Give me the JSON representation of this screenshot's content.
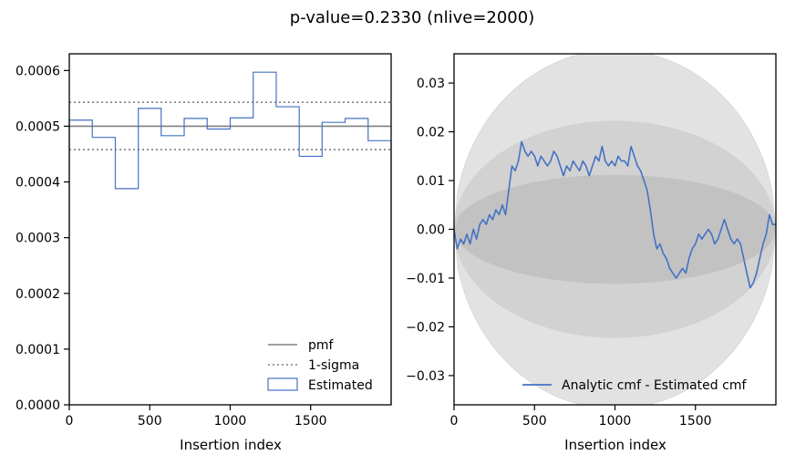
{
  "figure": {
    "title": "p-value=0.2330 (nlive=2000)"
  },
  "chart_data": [
    {
      "type": "step",
      "xlabel": "Insertion index",
      "ylabel": "",
      "xlim": [
        0,
        2000
      ],
      "ylim": [
        0,
        0.00063
      ],
      "xticks": [
        0,
        500,
        1000,
        1500
      ],
      "xtick_labels": [
        "0",
        "500",
        "1000",
        "1500"
      ],
      "yticks": [
        0,
        0.0001,
        0.0002,
        0.0003,
        0.0004,
        0.0005,
        0.0006
      ],
      "ytick_labels": [
        "0.0000",
        "0.0001",
        "0.0002",
        "0.0003",
        "0.0004",
        "0.0005",
        "0.0006"
      ],
      "legend_position": "lower-right",
      "pmf": {
        "name": "pmf",
        "value": 0.0005,
        "color": "#7f7f7f"
      },
      "sigma": {
        "name": "1-sigma",
        "upper": 0.000543,
        "lower": 0.000458,
        "color": "#7f7f7f"
      },
      "estimated": {
        "name": "Estimated",
        "color": "#4472c4",
        "bin_edges": [
          0,
          143,
          286,
          429,
          571,
          714,
          857,
          1000,
          1143,
          1286,
          1429,
          1571,
          1714,
          1857,
          2000
        ],
        "values": [
          0.000511,
          0.00048,
          0.000388,
          0.000532,
          0.000483,
          0.000514,
          0.000495,
          0.000515,
          0.000597,
          0.000535,
          0.000446,
          0.000507,
          0.000514,
          0.000474
        ]
      }
    },
    {
      "type": "line",
      "xlabel": "Insertion index",
      "ylabel": "",
      "xlim": [
        0,
        2000
      ],
      "ylim": [
        -0.036,
        0.036
      ],
      "xticks": [
        0,
        500,
        1000,
        1500
      ],
      "xtick_labels": [
        "0",
        "500",
        "1000",
        "1500"
      ],
      "yticks": [
        -0.03,
        -0.02,
        -0.01,
        0.0,
        0.01,
        0.02,
        0.03
      ],
      "ytick_labels": [
        "−0.03",
        "−0.02",
        "−0.01",
        "0.00",
        "0.01",
        "0.02",
        "0.03"
      ],
      "legend_position": "lower-right",
      "bands": [
        {
          "sigma": 3,
          "amplitude": 0.0368,
          "color": "#e2e2e2"
        },
        {
          "sigma": 2,
          "amplitude": 0.0222,
          "color": "#d2d2d2"
        },
        {
          "sigma": 1,
          "amplitude": 0.0112,
          "color": "#c2c2c2"
        }
      ],
      "series": [
        {
          "name": "Analytic cmf - Estimated cmf",
          "color": "#4472c4",
          "x": [
            0,
            20,
            40,
            60,
            80,
            100,
            120,
            140,
            160,
            180,
            200,
            220,
            240,
            260,
            280,
            300,
            320,
            340,
            360,
            380,
            400,
            420,
            440,
            460,
            480,
            500,
            520,
            540,
            560,
            580,
            600,
            620,
            640,
            660,
            680,
            700,
            720,
            740,
            760,
            780,
            800,
            820,
            840,
            860,
            880,
            900,
            920,
            940,
            960,
            980,
            1000,
            1020,
            1040,
            1060,
            1080,
            1100,
            1120,
            1140,
            1160,
            1180,
            1200,
            1220,
            1240,
            1260,
            1280,
            1300,
            1320,
            1340,
            1360,
            1380,
            1400,
            1420,
            1440,
            1460,
            1480,
            1500,
            1520,
            1540,
            1560,
            1580,
            1600,
            1620,
            1640,
            1660,
            1680,
            1700,
            1720,
            1740,
            1760,
            1780,
            1800,
            1820,
            1840,
            1860,
            1880,
            1900,
            1920,
            1940,
            1960,
            1980,
            2000
          ],
          "y": [
            0.0,
            -0.004,
            -0.002,
            -0.003,
            -0.001,
            -0.003,
            0.0,
            -0.002,
            0.001,
            0.002,
            0.001,
            0.003,
            0.002,
            0.004,
            0.003,
            0.005,
            0.003,
            0.008,
            0.013,
            0.012,
            0.014,
            0.018,
            0.016,
            0.015,
            0.016,
            0.015,
            0.013,
            0.015,
            0.014,
            0.013,
            0.014,
            0.016,
            0.015,
            0.013,
            0.011,
            0.013,
            0.012,
            0.014,
            0.013,
            0.012,
            0.014,
            0.013,
            0.011,
            0.013,
            0.015,
            0.014,
            0.017,
            0.014,
            0.013,
            0.014,
            0.013,
            0.015,
            0.014,
            0.014,
            0.013,
            0.017,
            0.015,
            0.013,
            0.012,
            0.01,
            0.008,
            0.004,
            -0.001,
            -0.004,
            -0.003,
            -0.005,
            -0.006,
            -0.008,
            -0.009,
            -0.01,
            -0.009,
            -0.008,
            -0.009,
            -0.006,
            -0.004,
            -0.003,
            -0.001,
            -0.002,
            -0.001,
            0.0,
            -0.001,
            -0.003,
            -0.002,
            0.0,
            0.002,
            0.0,
            -0.002,
            -0.003,
            -0.002,
            -0.003,
            -0.006,
            -0.009,
            -0.012,
            -0.011,
            -0.009,
            -0.006,
            -0.003,
            -0.001,
            0.003,
            0.001,
            0.001
          ]
        }
      ]
    }
  ]
}
